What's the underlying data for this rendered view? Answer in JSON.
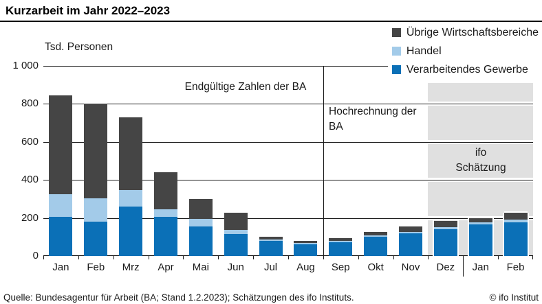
{
  "title": "Kurzarbeit im Jahr 2022–2023",
  "annotations": {
    "final_counts": "Endgültige Zahlen der BA",
    "projection": "Hochrechnung der BA",
    "ifo_estimate": "ifo Schätzung"
  },
  "legend": {
    "items": [
      {
        "label": "Übrige Wirtschaftsbereiche",
        "color": "#454545"
      },
      {
        "label": "Handel",
        "color": "#a3cbe9"
      },
      {
        "label": "Verarbeitendes Gewerbe",
        "color": "#0b70b7"
      }
    ]
  },
  "footer": {
    "source": "Quelle: Bundesagentur für Arbeit (BA; Stand 1.2.2023); Schätzungen des ifo Instituts.",
    "copyright": "© ifo Institut"
  },
  "colors": {
    "blue": "#0b70b7",
    "light_blue": "#a3cbe9",
    "dark_gray": "#454545",
    "region_gray": "#e0e0e0",
    "line": "#1a1a1a"
  },
  "chart_data": {
    "type": "bar",
    "stacked": true,
    "title": "Kurzarbeit im Jahr 2022–2023",
    "ylabel": "Tsd. Personen",
    "ylim": [
      0,
      1000
    ],
    "yticks": [
      0,
      200,
      400,
      600,
      800,
      1000
    ],
    "ytick_labels": [
      "0",
      "200",
      "400",
      "600",
      "800",
      "1 000"
    ],
    "categories": [
      "Jan",
      "Feb",
      "Mrz",
      "Apr",
      "Mai",
      "Jun",
      "Jul",
      "Aug",
      "Sep",
      "Okt",
      "Nov",
      "Dez",
      "Jan",
      "Feb"
    ],
    "series": [
      {
        "name": "Verarbeitendes Gewerbe",
        "color": "#0b70b7",
        "values": [
          205,
          180,
          260,
          207,
          155,
          115,
          78,
          61,
          74,
          100,
          118,
          140,
          165,
          177
        ]
      },
      {
        "name": "Handel",
        "color": "#a3cbe9",
        "values": [
          120,
          125,
          85,
          40,
          40,
          22,
          8,
          6,
          7,
          8,
          7,
          10,
          12,
          15
        ]
      },
      {
        "name": "Übrige Wirtschaftsbereiche",
        "color": "#454545",
        "values": [
          520,
          495,
          385,
          193,
          105,
          91,
          17,
          12,
          13,
          18,
          29,
          36,
          22,
          34
        ]
      }
    ],
    "regions": [
      {
        "label": "Endgültige Zahlen der BA",
        "from_index": 0,
        "to_index": 7
      },
      {
        "label": "Hochrechnung der BA",
        "from_index": 8,
        "to_index": 10
      },
      {
        "label": "ifo Schätzung",
        "from_index": 11,
        "to_index": 13,
        "shaded": true
      }
    ],
    "year_separator_after_index": 11,
    "grid": true,
    "legend_position": "top-right"
  }
}
